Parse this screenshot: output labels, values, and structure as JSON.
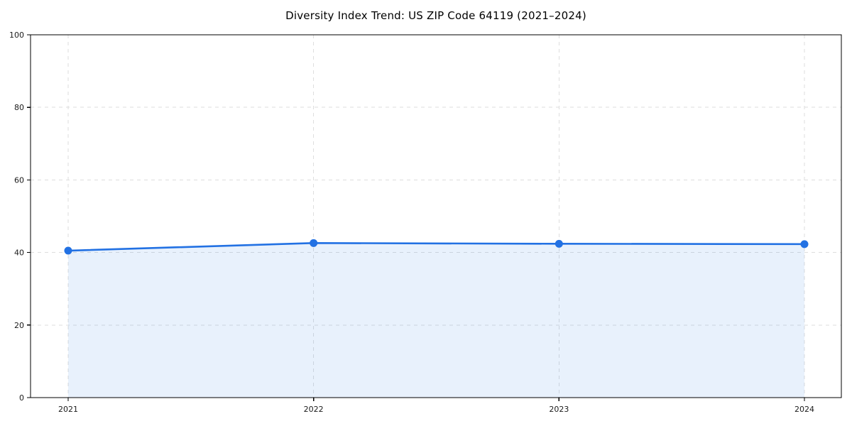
{
  "title": "Diversity Index Trend: US ZIP Code 64119 (2021–2024)",
  "chart_data": {
    "type": "line",
    "title": "Diversity Index Trend: US ZIP Code 64119 (2021–2024)",
    "x": [
      "2021",
      "2022",
      "2023",
      "2024"
    ],
    "series": [
      {
        "name": "Diversity Index",
        "values": [
          40.5,
          42.6,
          42.4,
          42.3
        ]
      }
    ],
    "xlabel": "",
    "ylabel": "",
    "ylim": [
      0,
      100
    ],
    "yticks": [
      0,
      20,
      40,
      60,
      80,
      100
    ],
    "xticks": [
      "2021",
      "2022",
      "2023",
      "2024"
    ],
    "grid": true,
    "grid_style": "dashed",
    "legend_position": "none",
    "area_fill": true,
    "marker": "circle",
    "colors": {
      "line": "#2271E3",
      "marker": "#2271E3",
      "area_fill_rgba": "rgba(34,113,227,0.10)",
      "grid": "#DEDEDE",
      "axis_frame": "#000000",
      "tick_label": "#1A1A1A",
      "title": "#000000",
      "background": "#FFFFFF"
    }
  }
}
